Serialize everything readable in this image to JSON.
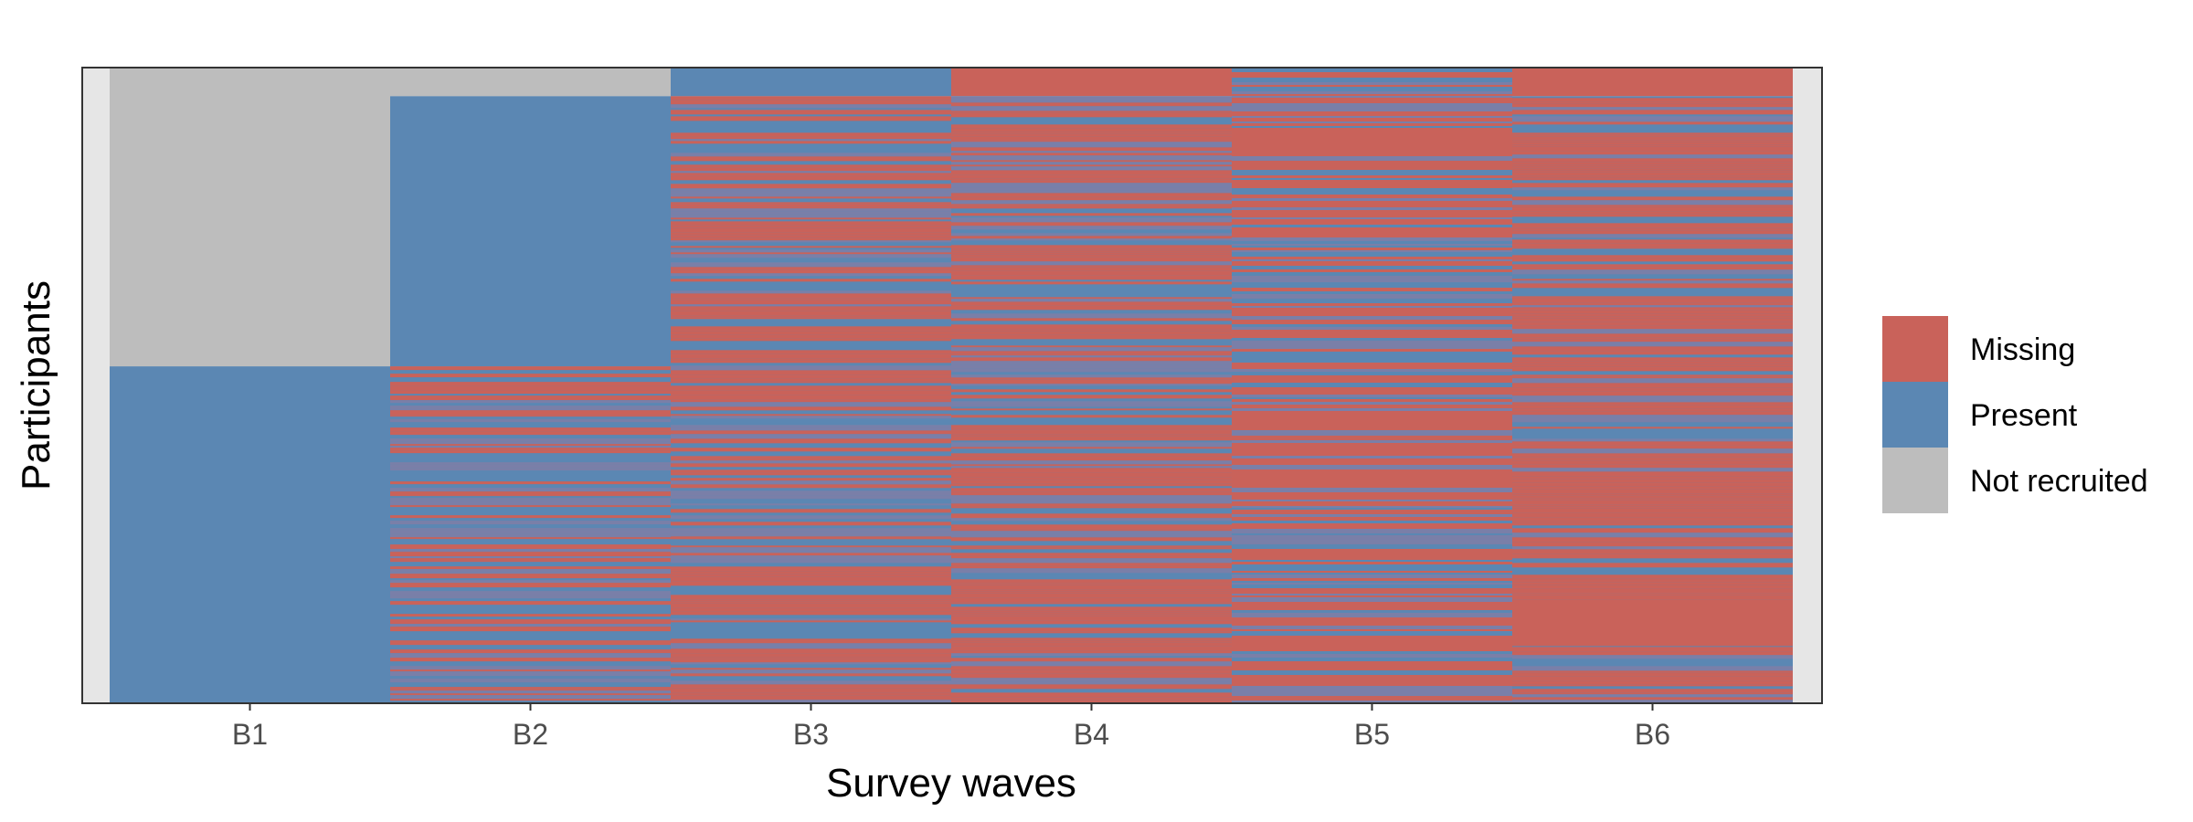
{
  "chart_data": {
    "type": "heatmap",
    "title": "",
    "xlabel": "Survey waves",
    "ylabel": "Participants",
    "categories": [
      "B1",
      "B2",
      "B3",
      "B4",
      "B5",
      "B6"
    ],
    "legend": {
      "position": "right",
      "items": [
        {
          "label": "Missing",
          "color": "#c9625a"
        },
        {
          "label": "Present",
          "color": "#5b87b3"
        },
        {
          "label": "Not recruited",
          "color": "#bdbdbd"
        }
      ]
    },
    "participant_fraction_ranges": [
      {
        "wave": "B1",
        "not_recruited": [
          0.0,
          0.47
        ],
        "present": [
          0.47,
          1.0
        ],
        "mixed": []
      },
      {
        "wave": "B2",
        "not_recruited": [
          0.0,
          0.045
        ],
        "present": [
          0.045,
          0.47
        ],
        "mixed": [
          0.47,
          1.0
        ]
      },
      {
        "wave": "B3",
        "present": [
          0.0,
          0.045
        ],
        "mixed": [
          0.045,
          1.0
        ]
      },
      {
        "wave": "B4",
        "missing": [
          0.0,
          0.045
        ],
        "mixed": [
          0.045,
          1.0
        ]
      },
      {
        "wave": "B5",
        "mixed": [
          0.0,
          1.0
        ]
      },
      {
        "wave": "B6",
        "missing": [
          0.0,
          0.045
        ],
        "mixed": [
          0.045,
          1.0
        ]
      }
    ],
    "grid": false,
    "panel_background": "#e6e6e6"
  }
}
